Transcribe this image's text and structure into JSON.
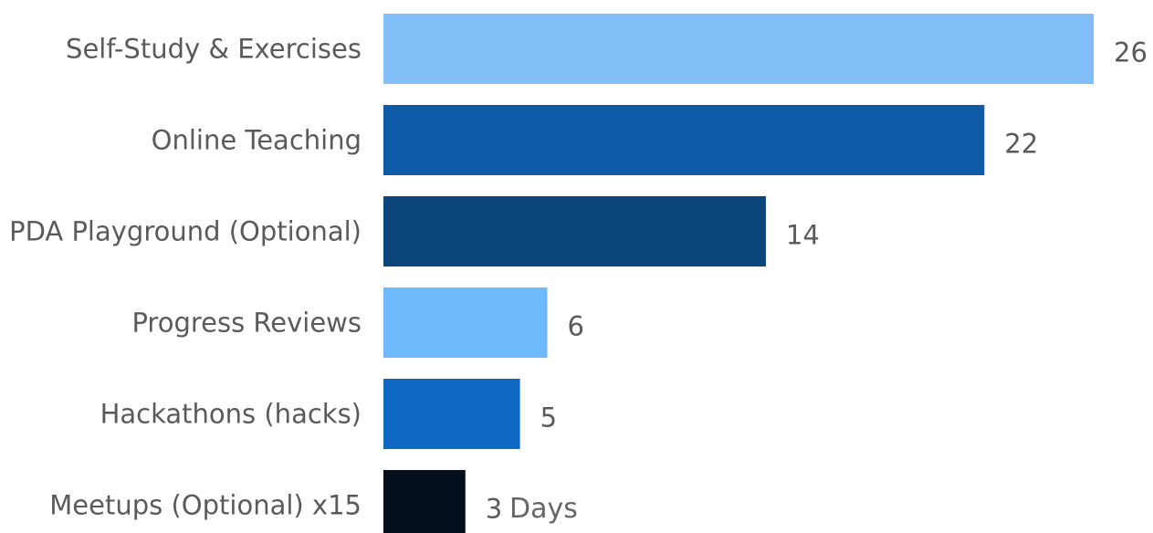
{
  "chart_data": {
    "type": "bar",
    "orientation": "horizontal",
    "categories": [
      "Self-Study & Exercises",
      "Online Teaching",
      "PDA Playground (Optional)",
      "Progress Reviews",
      "Hackathons (hacks)",
      "Meetups (Optional) x15"
    ],
    "values": [
      26,
      22,
      14,
      6,
      5,
      3
    ],
    "colors": [
      "#82bef7",
      "#0e5aa6",
      "#0b457c",
      "#6fb9fd",
      "#0f69c2",
      "#050f1c"
    ],
    "value_labels": [
      "26",
      "22",
      "14",
      "6",
      "5",
      "3"
    ],
    "unit_label": "Days",
    "title": "",
    "xlabel": "",
    "ylabel": "",
    "xlim": [
      0,
      26
    ],
    "grid": false,
    "legend": "none"
  }
}
